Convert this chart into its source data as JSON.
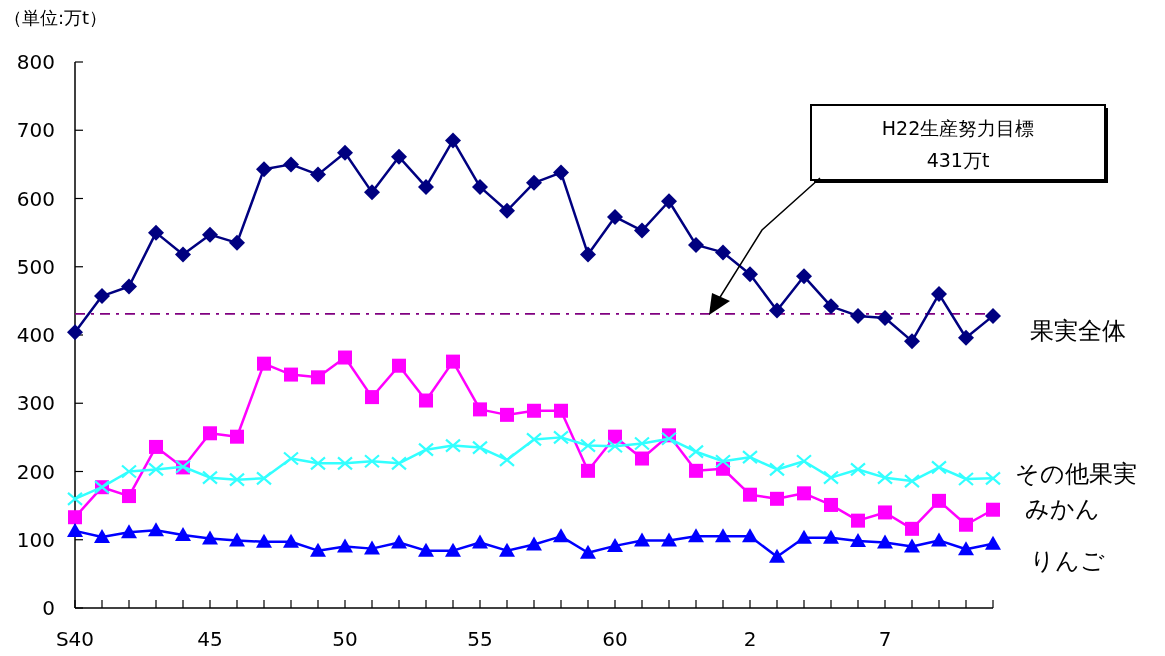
{
  "chart_data": {
    "type": "line",
    "ylabel": "（単位:万t）",
    "categories": [
      "S40",
      null,
      null,
      null,
      null,
      "45",
      null,
      null,
      null,
      null,
      "50",
      null,
      null,
      null,
      null,
      "55",
      null,
      null,
      null,
      null,
      "60",
      null,
      null,
      null,
      null,
      "2",
      null,
      null,
      null,
      null,
      "7",
      null,
      null,
      null,
      null
    ],
    "series": [
      {
        "name": "果実全体",
        "color": "#000080",
        "marker": "diamond",
        "values": [
          404,
          457,
          471,
          550,
          518,
          547,
          535,
          643,
          650,
          635,
          667,
          609,
          661,
          617,
          685,
          617,
          582,
          623,
          638,
          518,
          573,
          553,
          596,
          532,
          521,
          489,
          436,
          486,
          442,
          428,
          425,
          391,
          460,
          396,
          428
        ]
      },
      {
        "name": "みかん",
        "color": "#ff00ff",
        "marker": "square",
        "values": [
          133,
          177,
          164,
          236,
          206,
          256,
          251,
          358,
          342,
          338,
          367,
          309,
          355,
          304,
          361,
          291,
          283,
          289,
          289,
          201,
          251,
          219,
          253,
          201,
          204,
          166,
          160,
          168,
          151,
          128,
          140,
          116,
          157,
          122,
          144
        ]
      },
      {
        "name": "その他果実",
        "color": "#33ffff",
        "marker": "cross",
        "values": [
          160,
          177,
          200,
          203,
          207,
          191,
          188,
          190,
          219,
          212,
          212,
          215,
          212,
          232,
          238,
          235,
          217,
          247,
          250,
          238,
          237,
          241,
          248,
          229,
          215,
          221,
          203,
          215,
          191,
          203,
          191,
          186,
          206,
          189,
          190
        ]
      },
      {
        "name": "りんご",
        "color": "#0000ff",
        "marker": "triangle",
        "values": [
          113,
          104,
          111,
          114,
          107,
          102,
          99,
          97,
          97,
          84,
          90,
          87,
          96,
          84,
          84,
          96,
          84,
          93,
          105,
          81,
          91,
          99,
          99,
          105,
          105,
          105,
          75,
          103,
          103,
          98,
          96,
          90,
          99,
          86,
          94
        ]
      }
    ],
    "ylim": [
      0,
      800
    ],
    "yticks": [
      0,
      100,
      200,
      300,
      400,
      500,
      600,
      700,
      800
    ],
    "ref_lines": [
      {
        "axis": "y",
        "value": 431,
        "color": "#800080",
        "line_style": "dashed"
      }
    ],
    "annotations": [
      "H22生産努力目標\n431万t"
    ],
    "grid": false
  }
}
